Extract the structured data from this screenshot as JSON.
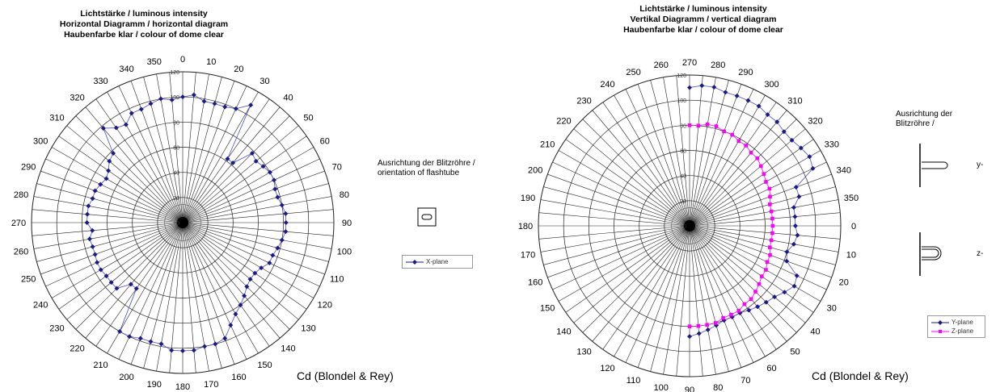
{
  "chart_data": [
    {
      "type": "polar-line",
      "title_lines": [
        "Lichtstärke / luminous intensity",
        "Horizontal Diagramm / horizontal diagram",
        "Haubenfarbe klar / colour of dome clear"
      ],
      "angle_ticks": [
        "0",
        "10",
        "20",
        "30",
        "40",
        "50",
        "60",
        "70",
        "80",
        "90",
        "100",
        "110",
        "120",
        "130",
        "140",
        "150",
        "160",
        "170",
        "180",
        "190",
        "200",
        "210",
        "220",
        "230",
        "240",
        "250",
        "260",
        "270",
        "280",
        "290",
        "300",
        "310",
        "320",
        "330",
        "340",
        "350"
      ],
      "radial_ticks": [
        "0",
        "20",
        "40",
        "60",
        "80",
        "100",
        "120"
      ],
      "rlim": [
        0,
        120
      ],
      "direction": "clockwise",
      "zero_at": "top",
      "unit_label": "Cd (Blondel & Rey)",
      "orientation_label": [
        "Ausrichtung der Blitzröhre /",
        "orientation of flashtube"
      ],
      "series": [
        {
          "name": "X-plane",
          "color": "#1a1a8c",
          "marker": "diamond",
          "angles": [
            0,
            5,
            10,
            15,
            20,
            25,
            30,
            35,
            40,
            45,
            50,
            55,
            60,
            65,
            70,
            75,
            80,
            85,
            90,
            95,
            100,
            105,
            110,
            115,
            120,
            125,
            130,
            135,
            140,
            145,
            150,
            155,
            160,
            165,
            170,
            175,
            180,
            185,
            190,
            195,
            200,
            205,
            210,
            215,
            220,
            225,
            230,
            235,
            240,
            245,
            250,
            255,
            260,
            265,
            270,
            275,
            280,
            285,
            290,
            295,
            300,
            305,
            310,
            315,
            320,
            325,
            330,
            335,
            340,
            345,
            350,
            355
          ],
          "values": [
            100,
            102,
            98,
            98,
            98,
            100,
            108,
            62,
            62,
            78,
            76,
            78,
            80,
            80,
            78,
            78,
            80,
            82,
            82,
            82,
            80,
            78,
            76,
            76,
            72,
            70,
            70,
            72,
            76,
            80,
            84,
            90,
            98,
            100,
            100,
            102,
            102,
            102,
            98,
            98,
            98,
            100,
            100,
            64,
            64,
            74,
            74,
            74,
            75,
            75,
            74,
            74,
            75,
            72,
            76,
            76,
            76,
            74,
            74,
            72,
            70,
            72,
            76,
            78,
            98,
            92,
            90,
            96,
            96,
            98,
            100,
            98
          ]
        }
      ]
    },
    {
      "type": "polar-line",
      "title_lines": [
        "Lichtstärke / luminous intensity",
        "Vertikal Diagramm / vertical diagram",
        "Haubenfarbe klar / colour of dome clear"
      ],
      "angle_ticks": [
        "270",
        "280",
        "290",
        "300",
        "310",
        "320",
        "330",
        "340",
        "350",
        "0",
        "10",
        "20",
        "30",
        "40",
        "50",
        "60",
        "70",
        "80",
        "90",
        "100",
        "110",
        "120",
        "130",
        "140",
        "150",
        "160",
        "170",
        "180",
        "190",
        "200",
        "210",
        "220",
        "230",
        "240",
        "250",
        "260"
      ],
      "radial_ticks": [
        "0",
        "20",
        "40",
        "60",
        "80",
        "100",
        "120"
      ],
      "rlim": [
        0,
        120
      ],
      "direction": "clockwise",
      "zero_at": "right",
      "unit_label": "Cd (Blondel & Rey)",
      "orientation_label": [
        "Ausrichtung der",
        "Blitzröhre /"
      ],
      "axis_labels": [
        "y-",
        "z-"
      ],
      "series": [
        {
          "name": "Y-plane",
          "color": "#1a1a8c",
          "marker": "diamond",
          "angles": [
            270,
            275,
            280,
            285,
            290,
            295,
            300,
            305,
            310,
            315,
            320,
            325,
            330,
            335,
            340,
            345,
            350,
            355,
            0,
            5,
            10,
            15,
            20,
            25,
            30,
            35,
            40,
            45,
            50,
            55,
            60,
            65,
            70,
            75,
            80,
            85,
            90
          ],
          "values": [
            110,
            112,
            112,
            110,
            110,
            110,
            110,
            108,
            108,
            106,
            106,
            108,
            110,
            108,
            90,
            90,
            84,
            84,
            84,
            86,
            84,
            80,
            82,
            94,
            96,
            92,
            88,
            86,
            84,
            82,
            80,
            80,
            80,
            82,
            84,
            86,
            88
          ]
        },
        {
          "name": "Z-plane",
          "color": "#ff00ff",
          "marker": "square",
          "angles": [
            270,
            275,
            280,
            285,
            290,
            295,
            300,
            305,
            310,
            315,
            320,
            325,
            330,
            335,
            340,
            345,
            350,
            355,
            0,
            5,
            10,
            15,
            20,
            25,
            30,
            35,
            40,
            45,
            50,
            55,
            60,
            65,
            70,
            75,
            80,
            85,
            90
          ],
          "values": [
            80,
            80,
            82,
            82,
            80,
            80,
            78,
            78,
            76,
            76,
            74,
            72,
            70,
            70,
            68,
            66,
            66,
            66,
            66,
            66,
            66,
            66,
            68,
            68,
            70,
            70,
            72,
            74,
            76,
            76,
            78,
            78,
            78,
            80,
            80,
            80,
            80
          ]
        }
      ]
    }
  ]
}
